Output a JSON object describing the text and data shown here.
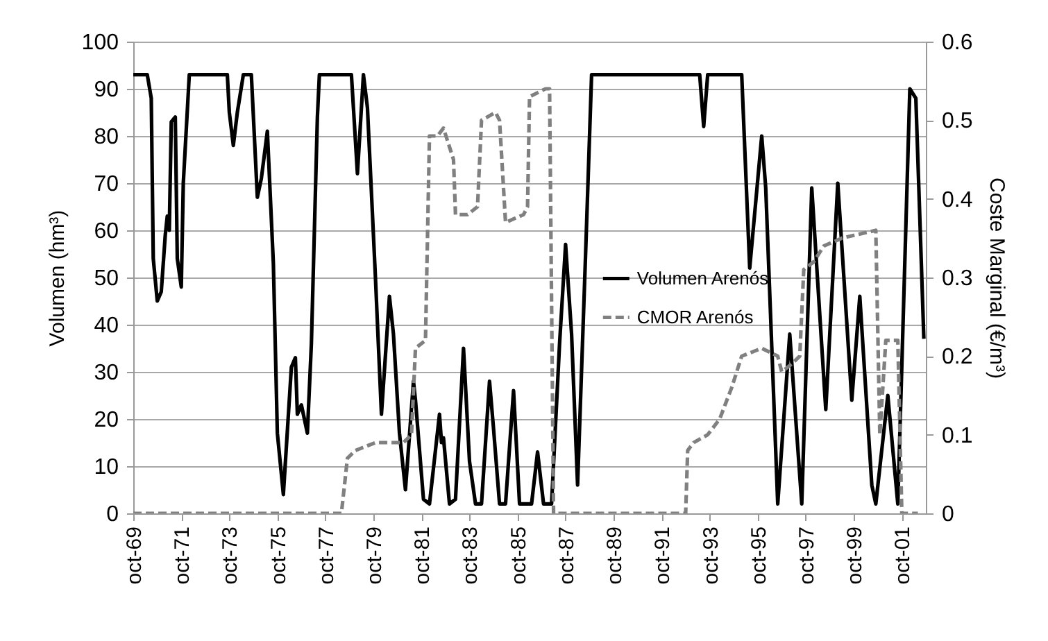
{
  "chart_data": {
    "type": "line",
    "ylabel": "Volumen (hm³)",
    "y2label": "Coste Marginal (€/m³)",
    "xlim": [
      "1969-10",
      "2002-10"
    ],
    "xticks": [
      {
        "value": "1969-10",
        "label": "oct-69"
      },
      {
        "value": "1971-10",
        "label": "oct-71"
      },
      {
        "value": "1973-10",
        "label": "oct-73"
      },
      {
        "value": "1975-10",
        "label": "oct-75"
      },
      {
        "value": "1977-10",
        "label": "oct-77"
      },
      {
        "value": "1979-10",
        "label": "oct-79"
      },
      {
        "value": "1981-10",
        "label": "oct-81"
      },
      {
        "value": "1983-10",
        "label": "oct-83"
      },
      {
        "value": "1985-10",
        "label": "oct-85"
      },
      {
        "value": "1987-10",
        "label": "oct-87"
      },
      {
        "value": "1989-10",
        "label": "oct-89"
      },
      {
        "value": "1991-10",
        "label": "oct-91"
      },
      {
        "value": "1993-10",
        "label": "oct-93"
      },
      {
        "value": "1995-10",
        "label": "oct-95"
      },
      {
        "value": "1997-10",
        "label": "oct-97"
      },
      {
        "value": "1999-10",
        "label": "oct-99"
      },
      {
        "value": "2001-10",
        "label": "oct-01"
      }
    ],
    "ylim": [
      0,
      100
    ],
    "yticks": [
      0,
      10,
      20,
      30,
      40,
      50,
      60,
      70,
      80,
      90,
      100
    ],
    "y2lim": [
      0,
      0.6
    ],
    "y2ticks": [
      0,
      0.1,
      0.2,
      0.3,
      0.4,
      0.5,
      0.6
    ],
    "grid": "y",
    "legend": "center",
    "series": [
      {
        "name": "Volumen Arenós",
        "color": "#000000",
        "line_style": "solid",
        "x": [
          "1969-10",
          "1970-05",
          "1970-07",
          "1970-08",
          "1970-10",
          "1970-12",
          "1971-02",
          "1971-03",
          "1971-04",
          "1971-05",
          "1971-07",
          "1971-08",
          "1971-10",
          "1971-11",
          "1972-02",
          "1973-09",
          "1973-10",
          "1973-12",
          "1974-02",
          "1974-05",
          "1974-09",
          "1974-12",
          "1975-02",
          "1975-05",
          "1975-08",
          "1975-10",
          "1976-01",
          "1976-05",
          "1976-07",
          "1976-08",
          "1976-10",
          "1977-01",
          "1977-03",
          "1977-06",
          "1977-07",
          "1978-11",
          "1979-02",
          "1979-05",
          "1979-07",
          "1979-11",
          "1980-02",
          "1980-06",
          "1980-08",
          "1980-11",
          "1981-02",
          "1981-06",
          "1981-07",
          "1981-11",
          "1982-02",
          "1982-07",
          "1982-08",
          "1982-09",
          "1982-12",
          "1983-03",
          "1983-07",
          "1983-10",
          "1984-01",
          "1984-04",
          "1984-08",
          "1984-10",
          "1985-01",
          "1985-04",
          "1985-08",
          "1985-11",
          "1986-05",
          "1986-08",
          "1986-11",
          "1987-03",
          "1987-07",
          "1987-10",
          "1988-01",
          "1988-04",
          "1988-08",
          "1988-11",
          "1993-05",
          "1993-07",
          "1993-09",
          "1995-02",
          "1995-06",
          "1995-12",
          "1996-02",
          "1996-08",
          "1997-02",
          "1997-08",
          "1998-01",
          "1998-08",
          "1999-02",
          "1999-09",
          "2000-01",
          "2000-07",
          "2000-09",
          "2001-03",
          "2001-08",
          "2002-02",
          "2002-05",
          "2002-09"
        ],
        "values": [
          93,
          93,
          88,
          54,
          45,
          47,
          59,
          63,
          60,
          83,
          84,
          54,
          48,
          70,
          93,
          93,
          85,
          78,
          85,
          93,
          93,
          67,
          71,
          81,
          53,
          17,
          4,
          31,
          33,
          21,
          23,
          17,
          36,
          84,
          93,
          93,
          72,
          93,
          86,
          50,
          21,
          46,
          38,
          17,
          5,
          28,
          24,
          3,
          2,
          21,
          15,
          16,
          2,
          3,
          35,
          11,
          2,
          2,
          28,
          18,
          2,
          2,
          26,
          2,
          2,
          13,
          2,
          2,
          36,
          57,
          38,
          6,
          55,
          93,
          93,
          82,
          93,
          93,
          52,
          80,
          69,
          2,
          38,
          2,
          69,
          22,
          70,
          24,
          46,
          6,
          2,
          25,
          2,
          90,
          88,
          37
        ]
      },
      {
        "name": "CMOR Arenós",
        "color": "#808080",
        "line_style": "dashed",
        "axis": "y2",
        "x": [
          "1969-10",
          "1978-06",
          "1978-09",
          "1979-01",
          "1979-11",
          "1981-01",
          "1981-05",
          "1981-07",
          "1981-12",
          "1982-02",
          "1982-06",
          "1982-09",
          "1983-02",
          "1983-03",
          "1983-09",
          "1984-02",
          "1984-04",
          "1984-11",
          "1985-01",
          "1985-04",
          "1986-01",
          "1986-03",
          "1986-04",
          "1986-12",
          "1987-02",
          "1987-04",
          "1992-10",
          "1992-11",
          "1993-02",
          "1993-09",
          "1994-03",
          "1994-09",
          "1995-02",
          "1995-12",
          "1996-08",
          "1996-10",
          "1997-03",
          "1997-07",
          "1997-09",
          "1998-02",
          "1998-07",
          "1999-04",
          "2000-09",
          "2000-11",
          "2001-02",
          "2001-08",
          "2001-10",
          "2002-06"
        ],
        "values": [
          0,
          0,
          0.07,
          0.08,
          0.09,
          0.09,
          0.1,
          0.21,
          0.22,
          0.48,
          0.48,
          0.49,
          0.45,
          0.38,
          0.38,
          0.39,
          0.5,
          0.51,
          0.5,
          0.37,
          0.38,
          0.39,
          0.53,
          0.54,
          0.54,
          0,
          0,
          0.08,
          0.09,
          0.1,
          0.12,
          0.16,
          0.2,
          0.21,
          0.2,
          0.18,
          0.19,
          0.2,
          0.31,
          0.32,
          0.34,
          0.35,
          0.36,
          0.1,
          0.22,
          0.22,
          0,
          0
        ]
      }
    ]
  }
}
